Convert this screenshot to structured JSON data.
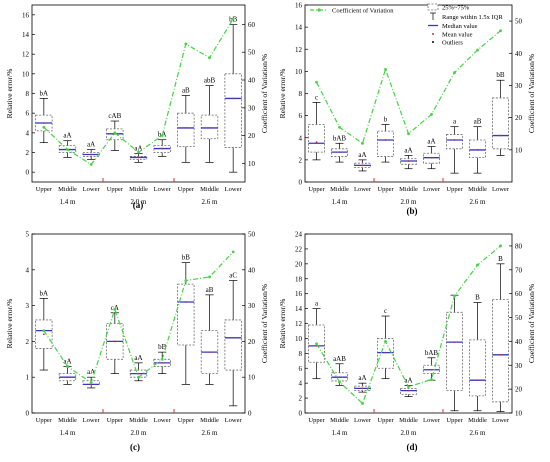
{
  "figure": {
    "panel_labels": [
      "(a)",
      "(b)",
      "(c)",
      "(d)"
    ],
    "legend": {
      "cv": "Coefficient of Variation",
      "iqr": "25%~75%",
      "whisker": "Range within 1.5x IQR",
      "median": "Median value",
      "mean": "Mean value",
      "outliers": "Outliers"
    }
  },
  "chart_data": [
    {
      "type": "box",
      "panel": "(a)",
      "ylabel": "Relative error/%",
      "y2label": "Coefficient of Variation/%",
      "ylim": [
        -1,
        17
      ],
      "yticks": [
        0,
        2,
        4,
        6,
        8,
        10,
        12,
        14,
        16
      ],
      "y2lim": [
        3.3,
        67
      ],
      "y2ticks": [
        10,
        20,
        30,
        40,
        50,
        60
      ],
      "categories": [
        "Upper",
        "Middle",
        "Lower",
        "Upper",
        "Middle",
        "Lower",
        "Upper",
        "Middle",
        "Lower"
      ],
      "groups": [
        "1.4 m",
        "2.0 m",
        "2.6 m"
      ],
      "boxes": [
        {
          "min": 3.0,
          "q1": 4.2,
          "median": 5.0,
          "q3": 5.8,
          "max": 7.5,
          "mean": 5.0,
          "label": "bA"
        },
        {
          "min": 1.5,
          "q1": 2.0,
          "median": 2.3,
          "q3": 2.7,
          "max": 3.2,
          "mean": 2.3,
          "label": "aA"
        },
        {
          "min": 1.3,
          "q1": 1.6,
          "median": 1.8,
          "q3": 2.0,
          "max": 2.3,
          "mean": 1.8,
          "label": "aA"
        },
        {
          "min": 2.2,
          "q1": 3.3,
          "median": 3.9,
          "q3": 4.4,
          "max": 5.2,
          "mean": 3.9,
          "label": "cAB"
        },
        {
          "min": 1.0,
          "q1": 1.3,
          "median": 1.5,
          "q3": 1.6,
          "max": 1.9,
          "mean": 1.5,
          "label": "aA"
        },
        {
          "min": 1.6,
          "q1": 2.0,
          "median": 2.4,
          "q3": 2.7,
          "max": 3.3,
          "mean": 2.4,
          "label": "bA"
        },
        {
          "min": 1.0,
          "q1": 2.6,
          "median": 4.5,
          "q3": 6.0,
          "max": 7.8,
          "mean": 4.5,
          "label": "aB"
        },
        {
          "min": 1.0,
          "q1": 3.4,
          "median": 4.5,
          "q3": 5.8,
          "max": 8.8,
          "mean": 4.5,
          "label": "abB"
        },
        {
          "min": 0.0,
          "q1": 2.5,
          "median": 7.5,
          "q3": 10.0,
          "max": 15.0,
          "mean": 7.5,
          "label": "bB"
        }
      ],
      "cv": [
        23,
        15,
        9.6,
        21,
        14,
        20,
        53,
        48,
        62
      ]
    },
    {
      "type": "box",
      "panel": "(b)",
      "ylabel": "Relative error/%",
      "y2label": "Coefficient of Variation/%",
      "ylim": [
        0,
        16
      ],
      "yticks": [
        0,
        2,
        4,
        6,
        8,
        10,
        12,
        14,
        16
      ],
      "y2lim": [
        0,
        55
      ],
      "y2ticks": [
        10,
        20,
        30,
        40,
        50
      ],
      "categories": [
        "Upper",
        "Middle",
        "Lower",
        "Upper",
        "Middle",
        "Lower",
        "Upper",
        "Middle",
        "Lower"
      ],
      "groups": [
        "1.4 m",
        "2.0 m",
        "2.6 m"
      ],
      "boxes": [
        {
          "min": 2.0,
          "q1": 2.7,
          "median": 3.5,
          "q3": 5.2,
          "max": 7.2,
          "mean": 3.6,
          "label": "c"
        },
        {
          "min": 1.8,
          "q1": 2.3,
          "median": 2.7,
          "q3": 3.0,
          "max": 3.5,
          "mean": 2.7,
          "label": "bAB"
        },
        {
          "min": 1.0,
          "q1": 1.3,
          "median": 1.5,
          "q3": 1.7,
          "max": 2.0,
          "mean": 1.5,
          "label": "aA"
        },
        {
          "min": 1.8,
          "q1": 2.3,
          "median": 3.8,
          "q3": 4.6,
          "max": 5.2,
          "mean": 3.8,
          "label": "b"
        },
        {
          "min": 1.2,
          "q1": 1.6,
          "median": 1.9,
          "q3": 2.1,
          "max": 2.4,
          "mean": 1.9,
          "label": "aA"
        },
        {
          "min": 1.2,
          "q1": 1.7,
          "median": 2.2,
          "q3": 2.6,
          "max": 3.2,
          "mean": 2.2,
          "label": "aA"
        },
        {
          "min": 0.8,
          "q1": 3.0,
          "median": 3.8,
          "q3": 4.3,
          "max": 5.0,
          "mean": 3.8,
          "label": "a"
        },
        {
          "min": 0.8,
          "q1": 2.2,
          "median": 2.9,
          "q3": 3.8,
          "max": 5.0,
          "mean": 2.9,
          "label": "aB"
        },
        {
          "min": 2.4,
          "q1": 3.0,
          "median": 4.2,
          "q3": 7.6,
          "max": 9.2,
          "mean": 4.2,
          "label": "bB"
        }
      ],
      "cv": [
        31,
        17,
        12,
        35,
        15,
        21,
        34,
        41,
        47
      ]
    },
    {
      "type": "box",
      "panel": "(c)",
      "ylabel": "Relative error/%",
      "y2label": "Coefficient of Variation/%",
      "ylim": [
        0,
        5
      ],
      "yticks": [
        0,
        1,
        2,
        3,
        4,
        5
      ],
      "y2lim": [
        0,
        50
      ],
      "y2ticks": [
        0,
        10,
        20,
        30,
        40,
        50
      ],
      "categories": [
        "Upper",
        "Middle",
        "Lower",
        "Upper",
        "Middle",
        "Lower",
        "Upper",
        "Middle",
        "Lower"
      ],
      "groups": [
        "1.4 m",
        "2.0 m",
        "2.6 m"
      ],
      "boxes": [
        {
          "min": 1.2,
          "q1": 1.8,
          "median": 2.3,
          "q3": 2.6,
          "max": 3.2,
          "mean": 2.2,
          "label": "bA"
        },
        {
          "min": 0.8,
          "q1": 0.9,
          "median": 1.0,
          "q3": 1.1,
          "max": 1.3,
          "mean": 1.0,
          "label": "aA"
        },
        {
          "min": 0.7,
          "q1": 0.8,
          "median": 0.8,
          "q3": 0.9,
          "max": 1.0,
          "mean": 0.8,
          "label": "aA"
        },
        {
          "min": 1.1,
          "q1": 1.5,
          "median": 2.0,
          "q3": 2.5,
          "max": 2.8,
          "mean": 2.0,
          "label": "cA"
        },
        {
          "min": 0.9,
          "q1": 1.0,
          "median": 1.1,
          "q3": 1.2,
          "max": 1.4,
          "mean": 1.1,
          "label": "aA"
        },
        {
          "min": 1.1,
          "q1": 1.3,
          "median": 1.4,
          "q3": 1.5,
          "max": 1.7,
          "mean": 1.4,
          "label": "bB"
        },
        {
          "min": 0.8,
          "q1": 1.9,
          "median": 3.1,
          "q3": 3.6,
          "max": 4.2,
          "mean": 3.1,
          "label": "bB"
        },
        {
          "min": 0.8,
          "q1": 1.1,
          "median": 1.7,
          "q3": 2.3,
          "max": 3.3,
          "mean": 1.7,
          "label": "aB"
        },
        {
          "min": 0.2,
          "q1": 1.2,
          "median": 2.1,
          "q3": 2.6,
          "max": 3.7,
          "mean": 2.1,
          "label": "aC"
        }
      ],
      "cv": [
        23,
        13,
        8.5,
        29,
        10,
        15,
        37,
        38,
        45
      ]
    },
    {
      "type": "box",
      "panel": "(d)",
      "ylabel": "Relative error/%",
      "y2label": "Coefficient of Variation/%",
      "ylim": [
        0,
        24
      ],
      "yticks": [
        0,
        2,
        4,
        6,
        8,
        10,
        12,
        14,
        16,
        18,
        20,
        22,
        24
      ],
      "y2lim": [
        10,
        85
      ],
      "y2ticks": [
        10,
        20,
        30,
        40,
        50,
        60,
        70,
        80
      ],
      "categories": [
        "Upper",
        "Middle",
        "Lower",
        "Upper",
        "Middle",
        "Lower",
        "Upper",
        "Middle",
        "Lower"
      ],
      "groups": [
        "1.4 m",
        "2.0 m",
        "2.6 m"
      ],
      "boxes": [
        {
          "min": 4.6,
          "q1": 6.8,
          "median": 9.0,
          "q3": 11.8,
          "max": 14.0,
          "mean": 9.0,
          "label": "a"
        },
        {
          "min": 3.7,
          "q1": 4.3,
          "median": 4.8,
          "q3": 5.4,
          "max": 6.6,
          "mean": 4.8,
          "label": "aAB"
        },
        {
          "min": 2.8,
          "q1": 3.0,
          "median": 3.3,
          "q3": 3.6,
          "max": 4.0,
          "mean": 3.3,
          "label": "aA"
        },
        {
          "min": 4.6,
          "q1": 6.0,
          "median": 8.1,
          "q3": 10.0,
          "max": 13.0,
          "mean": 8.1,
          "label": "c"
        },
        {
          "min": 2.2,
          "q1": 2.5,
          "median": 3.0,
          "q3": 3.3,
          "max": 3.7,
          "mean": 3.0,
          "label": "aA"
        },
        {
          "min": 4.4,
          "q1": 5.3,
          "median": 5.8,
          "q3": 6.4,
          "max": 7.4,
          "mean": 5.8,
          "label": "bAB"
        },
        {
          "min": 0.3,
          "q1": 3.0,
          "median": 9.5,
          "q3": 13.5,
          "max": 15.8,
          "mean": 9.5,
          "label": ""
        },
        {
          "min": 0.3,
          "q1": 2.3,
          "median": 4.4,
          "q3": 9.8,
          "max": 14.8,
          "mean": 4.4,
          "label": "B"
        },
        {
          "min": 0.2,
          "q1": 1.5,
          "median": 7.8,
          "q3": 15.2,
          "max": 20.0,
          "mean": 7.8,
          "label": "B"
        }
      ],
      "cv": [
        39,
        23,
        14,
        40,
        21,
        24,
        59,
        72,
        80
      ]
    }
  ]
}
